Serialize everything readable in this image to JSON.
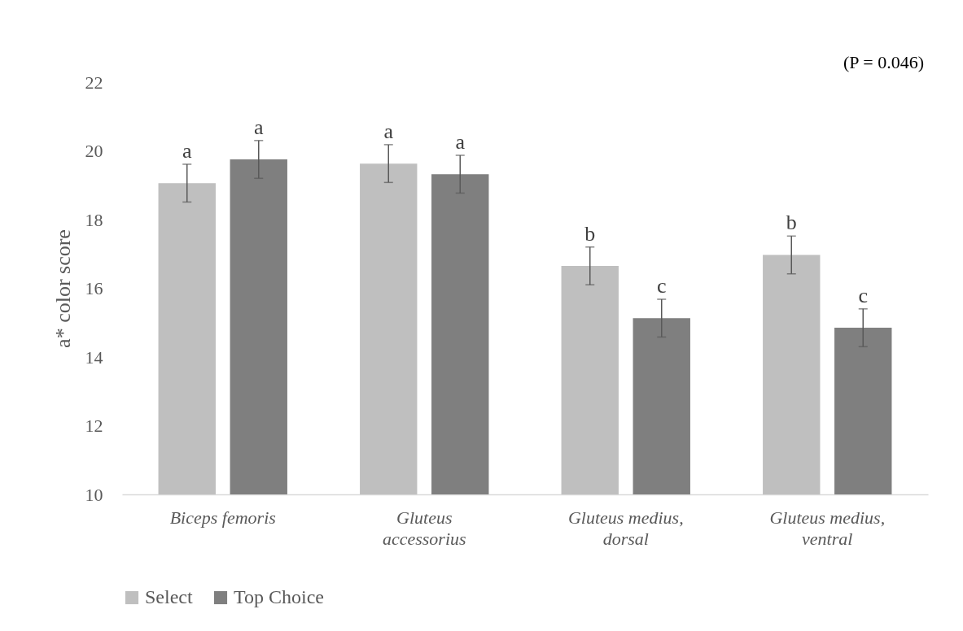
{
  "chart_data": {
    "type": "bar",
    "ylabel": "a* color score",
    "categories": [
      "Biceps femoris",
      "Gluteus accessorius",
      "Gluteus medius, dorsal",
      "Gluteus medius, ventral"
    ],
    "series": [
      {
        "name": "Select",
        "color": "#bfbfbf",
        "values": [
          19.06,
          19.63,
          16.65,
          16.97
        ],
        "errors": [
          0.55,
          0.55,
          0.55,
          0.55
        ]
      },
      {
        "name": "Top Choice",
        "color": "#7f7f7f",
        "values": [
          19.75,
          19.32,
          15.13,
          14.85
        ],
        "errors": [
          0.55,
          0.55,
          0.55,
          0.55
        ]
      }
    ],
    "ylim": [
      10,
      22
    ],
    "yticks": [
      10,
      12,
      14,
      16,
      18,
      20,
      22
    ],
    "grid": false,
    "legend": "bottom",
    "annotations": [
      "(P = 0.046)",
      "a",
      "a",
      "a",
      "a",
      "b",
      "c",
      "b",
      "c"
    ]
  }
}
